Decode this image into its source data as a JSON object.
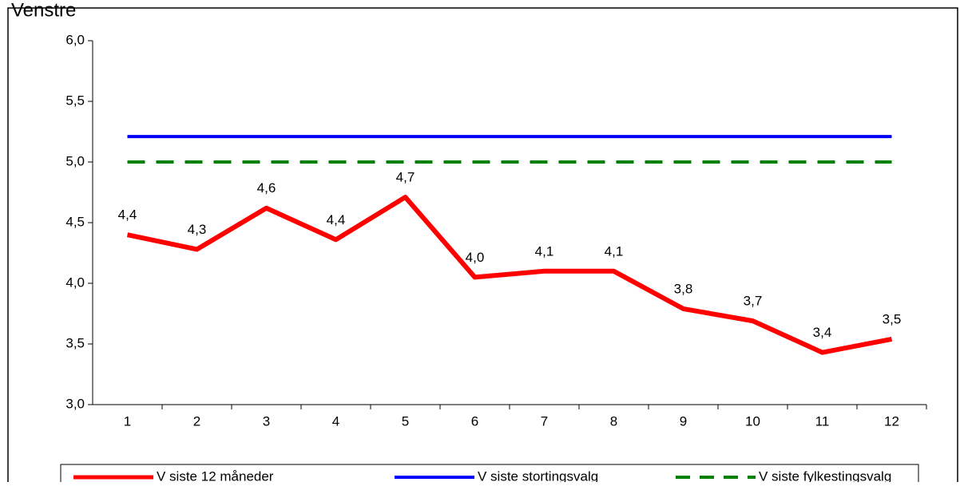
{
  "chart_data": {
    "type": "line",
    "title": "Venstre",
    "categories": [
      "1",
      "2",
      "3",
      "4",
      "5",
      "6",
      "7",
      "8",
      "9",
      "10",
      "11",
      "12"
    ],
    "series": [
      {
        "name": "V siste 12 måneder",
        "color": "#ff0000",
        "values": [
          4.4,
          4.28,
          4.62,
          4.36,
          4.71,
          4.05,
          4.1,
          4.1,
          3.79,
          3.69,
          3.43,
          3.54
        ],
        "value_labels": [
          "4,4",
          "4,3",
          "4,6",
          "4,4",
          "4,7",
          "4,0",
          "4,1",
          "4,1",
          "3,8",
          "3,7",
          "3,4",
          "3,5"
        ]
      },
      {
        "name": "V siste stortingsvalg",
        "color": "#0000ff",
        "values": [
          5.21,
          5.21,
          5.21,
          5.21,
          5.21,
          5.21,
          5.21,
          5.21,
          5.21,
          5.21,
          5.21,
          5.21
        ]
      },
      {
        "name": "V siste fylkestingsvalg",
        "color": "#008000",
        "dashed": true,
        "values": [
          5.0,
          5.0,
          5.0,
          5.0,
          5.0,
          5.0,
          5.0,
          5.0,
          5.0,
          5.0,
          5.0,
          5.0
        ]
      }
    ],
    "ylim": [
      3.0,
      6.0
    ],
    "yticks": [
      {
        "value": 3.0,
        "label": "3,0"
      },
      {
        "value": 3.5,
        "label": "3,5"
      },
      {
        "value": 4.0,
        "label": "4,0"
      },
      {
        "value": 4.5,
        "label": "4,5"
      },
      {
        "value": 5.0,
        "label": "5,0"
      },
      {
        "value": 5.5,
        "label": "5,5"
      },
      {
        "value": 6.0,
        "label": "6,0"
      }
    ],
    "legend": "bottom"
  }
}
